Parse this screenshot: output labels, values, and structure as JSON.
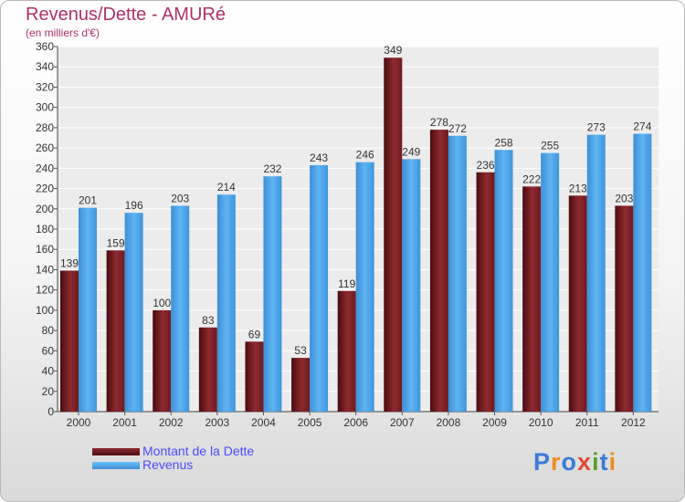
{
  "chart_data": {
    "type": "bar",
    "title": "Revenus/Dette - AMURé",
    "subtitle": "(en milliers d'€)",
    "categories": [
      "2000",
      "2001",
      "2002",
      "2003",
      "2004",
      "2005",
      "2006",
      "2007",
      "2008",
      "2009",
      "2010",
      "2011",
      "2012"
    ],
    "series": [
      {
        "name": "Montant de la Dette",
        "values": [
          139,
          159,
          100,
          83,
          69,
          53,
          119,
          349,
          278,
          236,
          222,
          213,
          203
        ],
        "color": "#7a1f24"
      },
      {
        "name": "Revenus",
        "values": [
          201,
          196,
          203,
          214,
          232,
          243,
          246,
          249,
          272,
          258,
          255,
          273,
          274
        ],
        "color": "#4aa3e8"
      }
    ],
    "ylim": [
      0,
      360
    ],
    "ytick_step": 20,
    "grid": true,
    "legend_position": "bottom-left"
  },
  "logo": {
    "text": "Proxiti",
    "colors": [
      "#3a7bd5",
      "#f08c1a",
      "#3a7bd5",
      "#e04a3a",
      "#5aa02c",
      "#3a7bd5",
      "#f08c1a"
    ]
  }
}
